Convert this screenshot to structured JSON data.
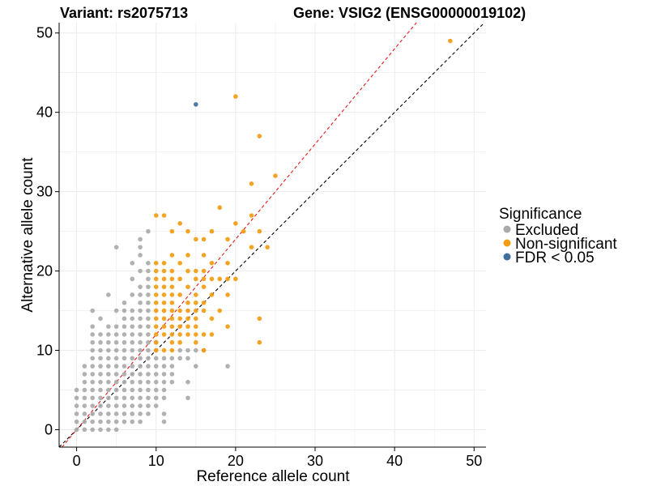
{
  "chart_data": {
    "type": "scatter",
    "title_left": "Variant: rs2075713",
    "title_right": "Gene: VSIG2 (ENSG00000019102)",
    "xlabel": "Reference allele count",
    "ylabel": "Alternative allele count",
    "xlim": [
      -2.2,
      51.5
    ],
    "ylim": [
      -2.2,
      51.3
    ],
    "xticks": [
      0,
      10,
      20,
      30,
      40,
      50
    ],
    "yticks": [
      0,
      10,
      20,
      30,
      40,
      50
    ],
    "grid": true,
    "legend": {
      "title": "Significance",
      "placement": "right",
      "entries": [
        {
          "label": "Excluded",
          "color": "#aaaaaa"
        },
        {
          "label": "Non-significant",
          "color": "#f39c12"
        },
        {
          "label": "FDR < 0.05",
          "color": "#3e6f9e"
        }
      ]
    },
    "reference_lines": [
      {
        "name": "identity",
        "slope": 1.0,
        "intercept": 0,
        "color": "#000000",
        "style": "dashed"
      },
      {
        "name": "fit",
        "slope": 1.2,
        "intercept": 0,
        "color": "#e31a1c",
        "style": "dashed"
      }
    ],
    "series": [
      {
        "name": "Excluded",
        "color": "#aaaaaa",
        "points": [
          [
            0,
            0
          ],
          [
            0,
            1
          ],
          [
            0,
            2
          ],
          [
            0,
            3
          ],
          [
            0,
            4
          ],
          [
            0,
            5
          ],
          [
            1,
            0
          ],
          [
            1,
            1
          ],
          [
            1,
            2
          ],
          [
            1,
            3
          ],
          [
            1,
            4
          ],
          [
            1,
            5
          ],
          [
            1,
            6
          ],
          [
            1,
            7
          ],
          [
            1,
            8
          ],
          [
            2,
            0
          ],
          [
            2,
            1
          ],
          [
            2,
            2
          ],
          [
            2,
            3
          ],
          [
            2,
            4
          ],
          [
            2,
            5
          ],
          [
            2,
            6
          ],
          [
            2,
            7
          ],
          [
            2,
            8
          ],
          [
            2,
            9
          ],
          [
            2,
            10
          ],
          [
            2,
            11
          ],
          [
            2,
            12
          ],
          [
            2,
            13
          ],
          [
            2,
            15
          ],
          [
            3,
            0
          ],
          [
            3,
            1
          ],
          [
            3,
            2
          ],
          [
            3,
            3
          ],
          [
            3,
            4
          ],
          [
            3,
            5
          ],
          [
            3,
            6
          ],
          [
            3,
            7
          ],
          [
            3,
            8
          ],
          [
            3,
            9
          ],
          [
            3,
            10
          ],
          [
            3,
            11
          ],
          [
            3,
            12
          ],
          [
            3,
            14
          ],
          [
            4,
            0
          ],
          [
            4,
            1
          ],
          [
            4,
            2
          ],
          [
            4,
            3
          ],
          [
            4,
            4
          ],
          [
            4,
            5
          ],
          [
            4,
            6
          ],
          [
            4,
            7
          ],
          [
            4,
            8
          ],
          [
            4,
            9
          ],
          [
            4,
            10
          ],
          [
            4,
            11
          ],
          [
            4,
            12
          ],
          [
            4,
            13
          ],
          [
            4,
            17
          ],
          [
            5,
            0
          ],
          [
            5,
            1
          ],
          [
            5,
            2
          ],
          [
            5,
            3
          ],
          [
            5,
            4
          ],
          [
            5,
            5
          ],
          [
            5,
            6
          ],
          [
            5,
            7
          ],
          [
            5,
            8
          ],
          [
            5,
            9
          ],
          [
            5,
            10
          ],
          [
            5,
            11
          ],
          [
            5,
            12
          ],
          [
            5,
            13
          ],
          [
            5,
            15
          ],
          [
            5,
            23
          ],
          [
            6,
            1
          ],
          [
            6,
            2
          ],
          [
            6,
            3
          ],
          [
            6,
            4
          ],
          [
            6,
            5
          ],
          [
            6,
            6
          ],
          [
            6,
            7
          ],
          [
            6,
            8
          ],
          [
            6,
            9
          ],
          [
            6,
            10
          ],
          [
            6,
            11
          ],
          [
            6,
            12
          ],
          [
            6,
            13
          ],
          [
            6,
            14
          ],
          [
            6,
            15
          ],
          [
            6,
            16
          ],
          [
            7,
            1
          ],
          [
            7,
            2
          ],
          [
            7,
            3
          ],
          [
            7,
            4
          ],
          [
            7,
            5
          ],
          [
            7,
            6
          ],
          [
            7,
            7
          ],
          [
            7,
            8
          ],
          [
            7,
            9
          ],
          [
            7,
            10
          ],
          [
            7,
            11
          ],
          [
            7,
            12
          ],
          [
            7,
            13
          ],
          [
            7,
            14
          ],
          [
            7,
            15
          ],
          [
            7,
            17
          ],
          [
            7,
            19
          ],
          [
            7,
            21
          ],
          [
            8,
            1
          ],
          [
            8,
            2
          ],
          [
            8,
            3
          ],
          [
            8,
            4
          ],
          [
            8,
            5
          ],
          [
            8,
            6
          ],
          [
            8,
            7
          ],
          [
            8,
            8
          ],
          [
            8,
            9
          ],
          [
            8,
            10
          ],
          [
            8,
            11
          ],
          [
            8,
            12
          ],
          [
            8,
            13
          ],
          [
            8,
            14
          ],
          [
            8,
            15
          ],
          [
            8,
            16
          ],
          [
            8,
            17
          ],
          [
            8,
            18
          ],
          [
            8,
            20
          ],
          [
            8,
            22
          ],
          [
            8,
            23
          ],
          [
            8,
            24
          ],
          [
            9,
            2
          ],
          [
            9,
            3
          ],
          [
            9,
            4
          ],
          [
            9,
            5
          ],
          [
            9,
            6
          ],
          [
            9,
            7
          ],
          [
            9,
            8
          ],
          [
            9,
            9
          ],
          [
            9,
            10
          ],
          [
            9,
            11
          ],
          [
            9,
            12
          ],
          [
            9,
            13
          ],
          [
            9,
            14
          ],
          [
            9,
            15
          ],
          [
            9,
            16
          ],
          [
            9,
            17
          ],
          [
            9,
            18
          ],
          [
            9,
            19
          ],
          [
            9,
            20
          ],
          [
            9,
            21
          ],
          [
            9,
            25
          ],
          [
            10,
            3
          ],
          [
            10,
            4
          ],
          [
            10,
            5
          ],
          [
            10,
            6
          ],
          [
            10,
            7
          ],
          [
            10,
            8
          ],
          [
            10,
            9
          ],
          [
            10,
            10
          ],
          [
            10,
            11
          ],
          [
            11,
            2
          ],
          [
            11,
            4
          ],
          [
            11,
            5
          ],
          [
            11,
            6
          ],
          [
            11,
            7
          ],
          [
            11,
            8
          ],
          [
            11,
            9
          ],
          [
            12,
            6
          ],
          [
            12,
            7
          ],
          [
            12,
            8
          ],
          [
            12,
            9
          ],
          [
            13,
            9
          ],
          [
            13,
            10
          ],
          [
            14,
            9
          ],
          [
            14,
            10
          ],
          [
            15,
            10
          ],
          [
            15,
            8
          ],
          [
            16,
            10
          ],
          [
            14,
            6
          ],
          [
            14,
            4
          ],
          [
            11,
            1
          ],
          [
            19,
            8
          ]
        ]
      },
      {
        "name": "Non-significant",
        "color": "#f39c12",
        "points": [
          [
            10,
            10
          ],
          [
            10,
            11
          ],
          [
            10,
            12
          ],
          [
            10,
            13
          ],
          [
            10,
            14
          ],
          [
            10,
            15
          ],
          [
            10,
            16
          ],
          [
            10,
            17
          ],
          [
            10,
            18
          ],
          [
            10,
            19
          ],
          [
            10,
            20
          ],
          [
            10,
            21
          ],
          [
            10,
            27
          ],
          [
            11,
            10
          ],
          [
            11,
            12
          ],
          [
            11,
            13
          ],
          [
            11,
            14
          ],
          [
            11,
            15
          ],
          [
            11,
            16
          ],
          [
            11,
            17
          ],
          [
            11,
            18
          ],
          [
            11,
            19
          ],
          [
            11,
            20
          ],
          [
            11,
            21
          ],
          [
            11,
            27
          ],
          [
            12,
            10
          ],
          [
            12,
            11
          ],
          [
            12,
            12
          ],
          [
            12,
            13
          ],
          [
            12,
            14
          ],
          [
            12,
            15
          ],
          [
            12,
            16
          ],
          [
            12,
            17
          ],
          [
            12,
            18
          ],
          [
            12,
            19
          ],
          [
            12,
            20
          ],
          [
            12,
            22
          ],
          [
            12,
            25
          ],
          [
            13,
            11
          ],
          [
            13,
            12
          ],
          [
            13,
            13
          ],
          [
            13,
            14
          ],
          [
            13,
            15
          ],
          [
            13,
            17
          ],
          [
            13,
            19
          ],
          [
            13,
            21
          ],
          [
            13,
            26
          ],
          [
            14,
            12
          ],
          [
            14,
            13
          ],
          [
            14,
            14
          ],
          [
            14,
            15
          ],
          [
            14,
            16
          ],
          [
            14,
            18
          ],
          [
            14,
            20
          ],
          [
            14,
            22
          ],
          [
            14,
            25
          ],
          [
            15,
            11
          ],
          [
            15,
            12
          ],
          [
            15,
            13
          ],
          [
            15,
            14
          ],
          [
            15,
            15
          ],
          [
            15,
            16
          ],
          [
            15,
            17
          ],
          [
            15,
            19
          ],
          [
            15,
            20
          ],
          [
            15,
            24
          ],
          [
            16,
            10
          ],
          [
            16,
            12
          ],
          [
            16,
            15
          ],
          [
            16,
            16
          ],
          [
            16,
            18
          ],
          [
            16,
            19
          ],
          [
            16,
            20
          ],
          [
            16,
            22
          ],
          [
            16,
            24
          ],
          [
            17,
            12
          ],
          [
            17,
            14
          ],
          [
            17,
            17
          ],
          [
            17,
            19
          ],
          [
            17,
            21
          ],
          [
            17,
            25
          ],
          [
            18,
            15
          ],
          [
            18,
            19
          ],
          [
            18,
            28
          ],
          [
            19,
            13
          ],
          [
            19,
            17
          ],
          [
            19,
            19
          ],
          [
            19,
            21
          ],
          [
            19,
            24
          ],
          [
            20,
            19
          ],
          [
            20,
            26
          ],
          [
            20,
            42
          ],
          [
            21,
            25
          ],
          [
            22,
            23
          ],
          [
            22,
            27
          ],
          [
            22,
            31
          ],
          [
            23,
            11
          ],
          [
            23,
            14
          ],
          [
            23,
            25
          ],
          [
            23,
            37
          ],
          [
            24,
            23
          ],
          [
            25,
            32
          ],
          [
            47,
            49
          ]
        ]
      },
      {
        "name": "FDR < 0.05",
        "color": "#3e6f9e",
        "points": [
          [
            15,
            41
          ]
        ]
      }
    ]
  }
}
